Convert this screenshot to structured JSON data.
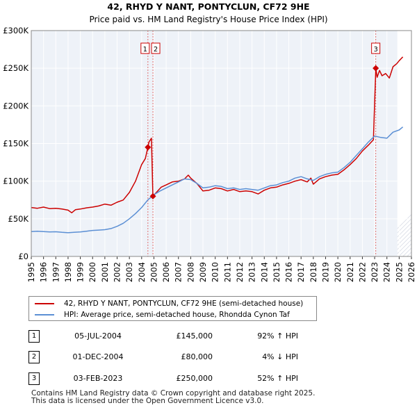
{
  "chart_data": {
    "type": "line",
    "title": "42, RHYD Y NANT, PONTYCLUN, CF72 9HE",
    "subtitle": "Price paid vs. HM Land Registry's House Price Index (HPI)",
    "xlim": [
      1995,
      2026
    ],
    "ylim": [
      0,
      300000
    ],
    "x_ticks": [
      1995,
      1996,
      1997,
      1998,
      1999,
      2000,
      2001,
      2002,
      2003,
      2004,
      2005,
      2006,
      2007,
      2008,
      2009,
      2010,
      2011,
      2012,
      2013,
      2014,
      2015,
      2016,
      2017,
      2018,
      2019,
      2020,
      2021,
      2022,
      2023,
      2024,
      2025,
      2026
    ],
    "y_ticks": [
      0,
      50000,
      100000,
      150000,
      200000,
      250000,
      300000
    ],
    "y_tick_labels": [
      "£0",
      "£50K",
      "£100K",
      "£150K",
      "£200K",
      "£250K",
      "£300K"
    ],
    "forecast_start": 2024.85,
    "series": [
      {
        "name": "42, RHYD Y NANT, PONTYCLUN, CF72 9HE (semi-detached house)",
        "color": "#cc0000",
        "points": [
          [
            1995.0,
            65000
          ],
          [
            1995.5,
            64000
          ],
          [
            1996.0,
            65500
          ],
          [
            1996.5,
            63500
          ],
          [
            1997.0,
            64000
          ],
          [
            1997.5,
            63000
          ],
          [
            1998.0,
            61500
          ],
          [
            1998.3,
            58000
          ],
          [
            1998.6,
            62000
          ],
          [
            1999.0,
            63000
          ],
          [
            1999.5,
            64500
          ],
          [
            2000.0,
            65500
          ],
          [
            2000.5,
            67000
          ],
          [
            2001.0,
            69500
          ],
          [
            2001.5,
            68000
          ],
          [
            2002.0,
            72000
          ],
          [
            2002.5,
            75000
          ],
          [
            2003.0,
            85000
          ],
          [
            2003.5,
            100000
          ],
          [
            2004.0,
            122000
          ],
          [
            2004.3,
            130000
          ],
          [
            2004.51,
            145000
          ],
          [
            2004.6,
            152000
          ],
          [
            2004.8,
            157000
          ],
          [
            2004.92,
            80000
          ],
          [
            2005.2,
            85000
          ],
          [
            2005.6,
            92000
          ],
          [
            2006.0,
            95000
          ],
          [
            2006.5,
            99000
          ],
          [
            2007.0,
            100000
          ],
          [
            2007.5,
            103000
          ],
          [
            2007.8,
            108000
          ],
          [
            2008.0,
            104000
          ],
          [
            2008.5,
            97000
          ],
          [
            2009.0,
            87000
          ],
          [
            2009.5,
            88000
          ],
          [
            2010.0,
            91000
          ],
          [
            2010.5,
            90000
          ],
          [
            2011.0,
            87000
          ],
          [
            2011.5,
            89000
          ],
          [
            2012.0,
            86000
          ],
          [
            2012.5,
            87000
          ],
          [
            2013.0,
            86000
          ],
          [
            2013.5,
            83000
          ],
          [
            2014.0,
            88000
          ],
          [
            2014.5,
            91000
          ],
          [
            2015.0,
            92000
          ],
          [
            2015.5,
            95000
          ],
          [
            2016.0,
            97000
          ],
          [
            2016.5,
            100000
          ],
          [
            2017.0,
            102000
          ],
          [
            2017.5,
            99000
          ],
          [
            2017.8,
            104000
          ],
          [
            2018.0,
            96000
          ],
          [
            2018.5,
            103000
          ],
          [
            2019.0,
            106000
          ],
          [
            2019.5,
            108000
          ],
          [
            2020.0,
            109000
          ],
          [
            2020.5,
            115000
          ],
          [
            2021.0,
            122000
          ],
          [
            2021.5,
            130000
          ],
          [
            2022.0,
            140000
          ],
          [
            2022.5,
            148000
          ],
          [
            2022.9,
            155000
          ],
          [
            2023.09,
            250000
          ],
          [
            2023.2,
            238000
          ],
          [
            2023.4,
            247000
          ],
          [
            2023.6,
            240000
          ],
          [
            2023.9,
            243000
          ],
          [
            2024.2,
            237000
          ],
          [
            2024.5,
            252000
          ],
          [
            2024.8,
            256000
          ],
          [
            2025.0,
            260000
          ],
          [
            2025.3,
            265000
          ]
        ]
      },
      {
        "name": "HPI: Average price, semi-detached house, Rhondda Cynon Taf",
        "color": "#5b8fd4",
        "points": [
          [
            1995.0,
            33000
          ],
          [
            1995.5,
            33500
          ],
          [
            1996.0,
            33000
          ],
          [
            1996.5,
            32500
          ],
          [
            1997.0,
            32800
          ],
          [
            1997.5,
            32000
          ],
          [
            1998.0,
            31500
          ],
          [
            1998.5,
            32000
          ],
          [
            1999.0,
            32500
          ],
          [
            1999.5,
            33500
          ],
          [
            2000.0,
            34500
          ],
          [
            2000.5,
            35000
          ],
          [
            2001.0,
            35500
          ],
          [
            2001.5,
            37000
          ],
          [
            2002.0,
            40000
          ],
          [
            2002.5,
            44000
          ],
          [
            2003.0,
            50000
          ],
          [
            2003.5,
            57000
          ],
          [
            2004.0,
            65000
          ],
          [
            2004.5,
            75000
          ],
          [
            2005.0,
            82000
          ],
          [
            2005.5,
            87000
          ],
          [
            2006.0,
            91000
          ],
          [
            2006.5,
            95000
          ],
          [
            2007.0,
            99000
          ],
          [
            2007.5,
            103000
          ],
          [
            2008.0,
            102000
          ],
          [
            2008.5,
            97000
          ],
          [
            2009.0,
            91000
          ],
          [
            2009.5,
            92000
          ],
          [
            2010.0,
            94000
          ],
          [
            2010.5,
            93000
          ],
          [
            2011.0,
            90000
          ],
          [
            2011.5,
            91000
          ],
          [
            2012.0,
            89000
          ],
          [
            2012.5,
            90000
          ],
          [
            2013.0,
            89000
          ],
          [
            2013.5,
            88000
          ],
          [
            2014.0,
            91000
          ],
          [
            2014.5,
            94000
          ],
          [
            2015.0,
            95000
          ],
          [
            2015.5,
            98000
          ],
          [
            2016.0,
            100000
          ],
          [
            2016.5,
            104000
          ],
          [
            2017.0,
            106000
          ],
          [
            2017.5,
            103000
          ],
          [
            2018.0,
            101000
          ],
          [
            2018.5,
            106000
          ],
          [
            2019.0,
            109000
          ],
          [
            2019.5,
            111000
          ],
          [
            2020.0,
            112000
          ],
          [
            2020.5,
            118000
          ],
          [
            2021.0,
            125000
          ],
          [
            2021.5,
            134000
          ],
          [
            2022.0,
            143000
          ],
          [
            2022.5,
            152000
          ],
          [
            2023.0,
            160000
          ],
          [
            2023.5,
            158000
          ],
          [
            2024.0,
            157000
          ],
          [
            2024.5,
            165000
          ],
          [
            2025.0,
            168000
          ],
          [
            2025.3,
            172000
          ]
        ]
      }
    ],
    "transactions": [
      {
        "id": "1",
        "date": "05-JUL-2004",
        "x": 2004.51,
        "price": 145000,
        "price_label": "£145,000",
        "hpi": "92% ↑ HPI"
      },
      {
        "id": "2",
        "date": "01-DEC-2004",
        "x": 2004.92,
        "price": 80000,
        "price_label": "£80,000",
        "hpi": "4% ↓ HPI"
      },
      {
        "id": "3",
        "date": "03-FEB-2023",
        "x": 2023.09,
        "price": 250000,
        "price_label": "£250,000",
        "hpi": "52% ↑ HPI"
      }
    ]
  },
  "legend": {
    "property_label": "42, RHYD Y NANT, PONTYCLUN, CF72 9HE (semi-detached house)",
    "hpi_label": "HPI: Average price, semi-detached house, Rhondda Cynon Taf"
  },
  "footer": {
    "line1": "Contains HM Land Registry data © Crown copyright and database right 2025.",
    "line2": "This data is licensed under the Open Government Licence v3.0."
  }
}
